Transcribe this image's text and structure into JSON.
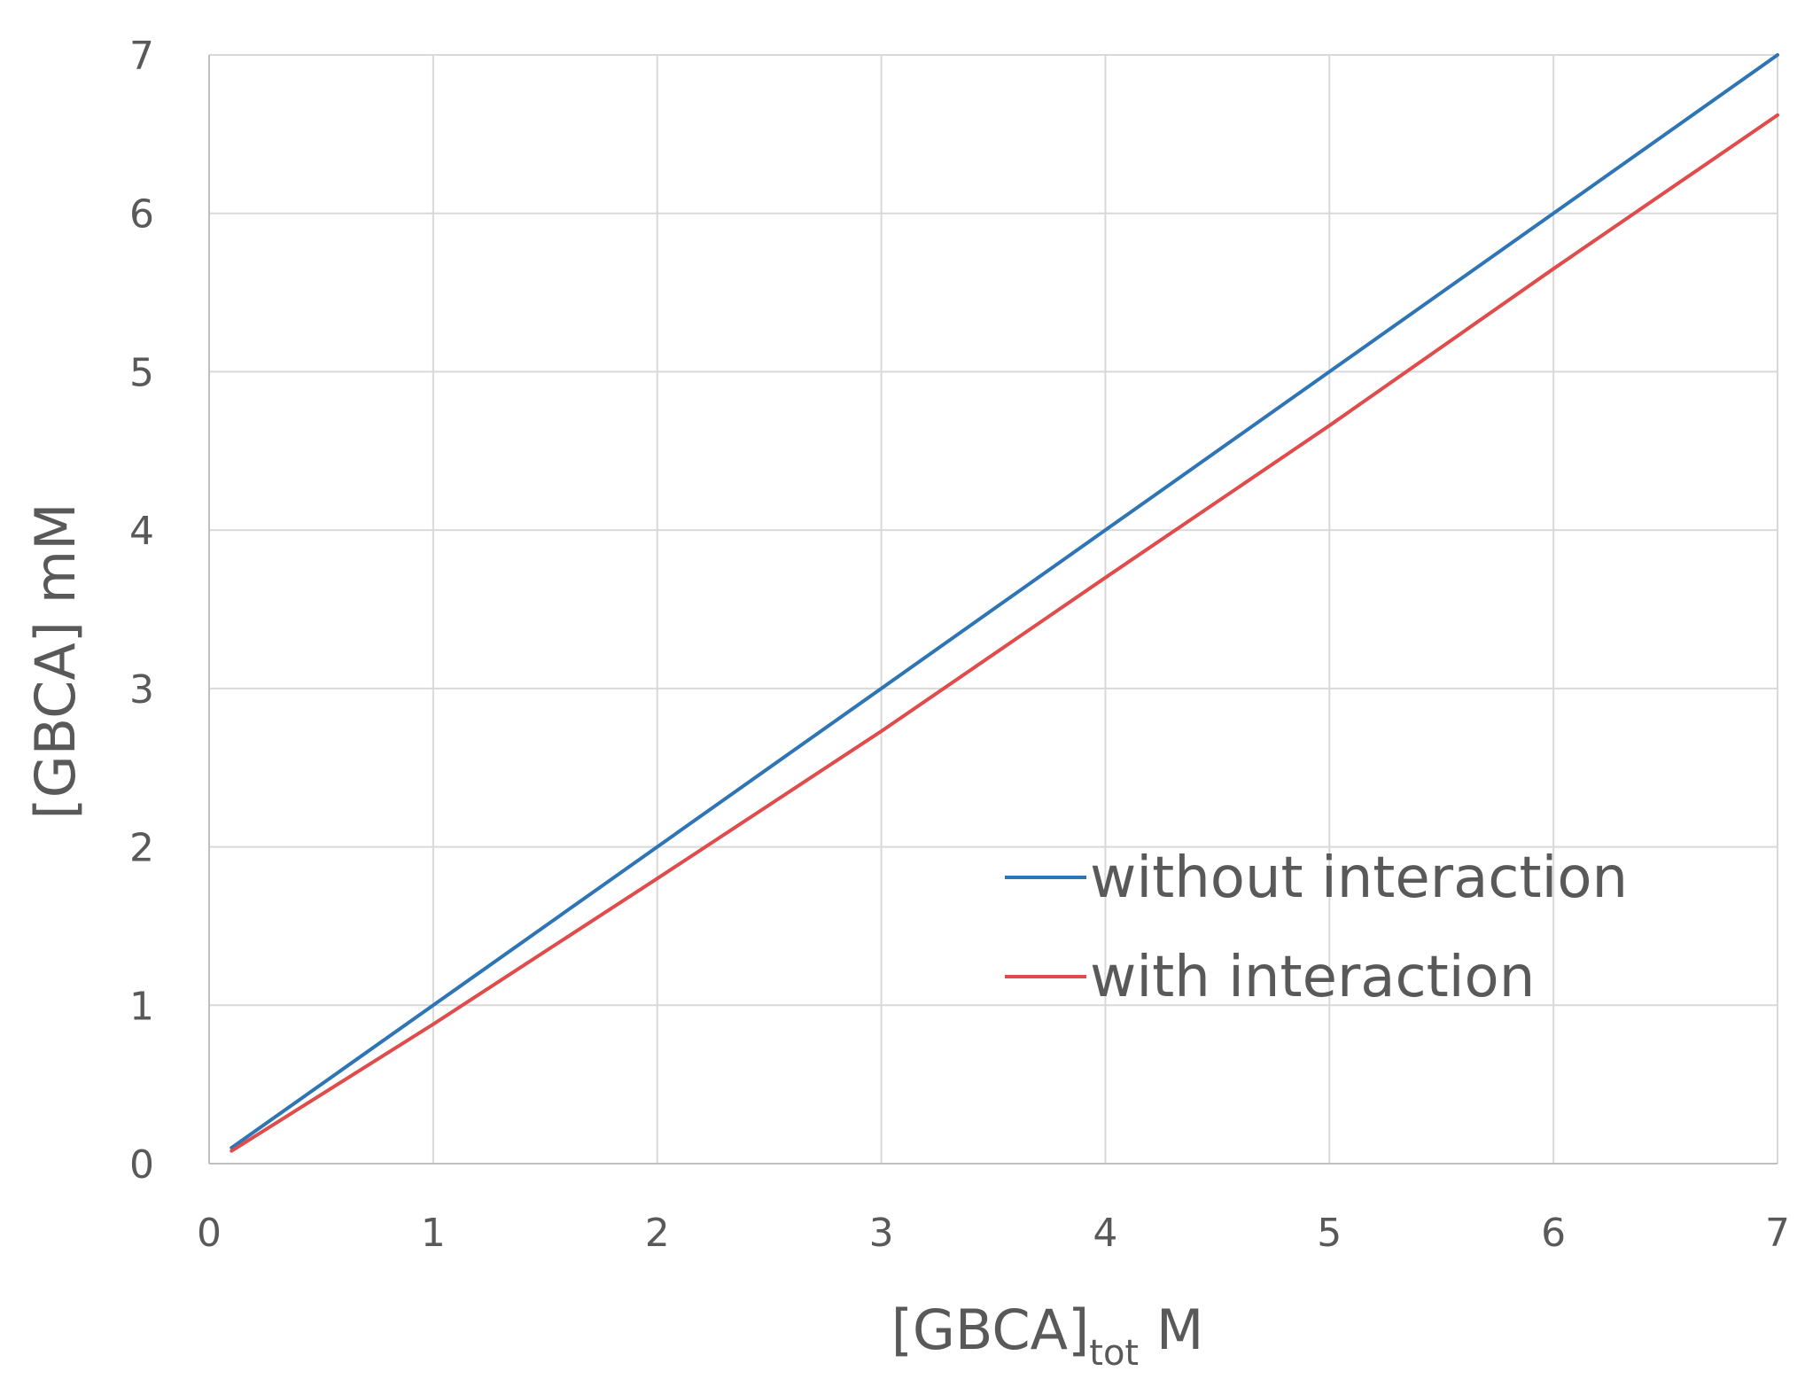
{
  "chart_data": {
    "type": "line",
    "xlabel": {
      "main": "[GBCA]",
      "sub": "tot",
      "unit": " M"
    },
    "ylabel": "[GBCA] mM",
    "xlim": [
      0,
      7
    ],
    "ylim": [
      0,
      7
    ],
    "xticks": [
      "0",
      "1",
      "2",
      "3",
      "4",
      "5",
      "6",
      "7"
    ],
    "yticks": [
      "0",
      "1",
      "2",
      "3",
      "4",
      "5",
      "6",
      "7"
    ],
    "grid": true,
    "legend_position": "lower-right",
    "series": [
      {
        "name": "without interaction",
        "color": "#2E75B6",
        "x": [
          0.1,
          7
        ],
        "y": [
          0.1,
          7
        ]
      },
      {
        "name": "with interaction",
        "color": "#E04B4B",
        "x": [
          0.1,
          1,
          2,
          3,
          4,
          5,
          6,
          7
        ],
        "y": [
          0.08,
          0.88,
          1.8,
          2.73,
          3.7,
          4.66,
          5.65,
          6.62
        ]
      }
    ]
  },
  "colors": {
    "grid": "#D9D9D9",
    "axis": "#BFBFBF",
    "text": "#595959"
  }
}
